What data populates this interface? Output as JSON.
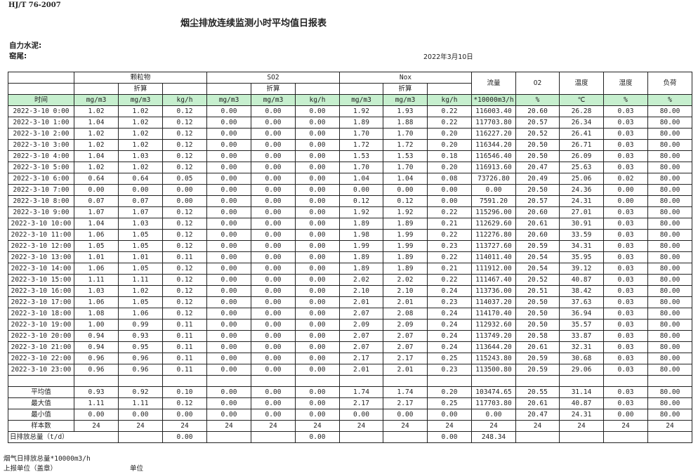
{
  "standard": "HJ/T  76-2007",
  "title": "烟尘排放连续监测小时平均值日报表",
  "company": "自力水泥:",
  "unit_name": "窑尾:",
  "date": "2022年3月10日",
  "header": {
    "groups": [
      "颗粒物",
      "SO2",
      "Nox"
    ],
    "converted": "折算",
    "flow": "流量",
    "o2": "O2",
    "temp": "温度",
    "humidity": "湿度",
    "load": "负荷",
    "units": [
      "时间",
      "mg/m3",
      "mg/m3",
      "kg/h",
      "mg/m3",
      "mg/m3",
      "kg/h",
      "mg/m3",
      "mg/m3",
      "kg/h",
      "*10000m3/h",
      "%",
      "℃",
      "%",
      "%"
    ]
  },
  "rows": [
    [
      "2022-3-10 0:00",
      "1.02",
      "1.02",
      "0.12",
      "0.00",
      "0.00",
      "0.00",
      "1.92",
      "1.93",
      "0.22",
      "116003.40",
      "20.60",
      "26.28",
      "0.03",
      "80.00"
    ],
    [
      "2022-3-10 1:00",
      "1.04",
      "1.02",
      "0.12",
      "0.00",
      "0.00",
      "0.00",
      "1.89",
      "1.88",
      "0.22",
      "117703.80",
      "20.57",
      "26.34",
      "0.03",
      "80.00"
    ],
    [
      "2022-3-10 2:00",
      "1.02",
      "1.02",
      "0.12",
      "0.00",
      "0.00",
      "0.00",
      "1.70",
      "1.70",
      "0.20",
      "116227.20",
      "20.52",
      "26.41",
      "0.03",
      "80.00"
    ],
    [
      "2022-3-10 3:00",
      "1.02",
      "1.02",
      "0.12",
      "0.00",
      "0.00",
      "0.00",
      "1.72",
      "1.72",
      "0.20",
      "116344.20",
      "20.50",
      "26.71",
      "0.03",
      "80.00"
    ],
    [
      "2022-3-10 4:00",
      "1.04",
      "1.03",
      "0.12",
      "0.00",
      "0.00",
      "0.00",
      "1.53",
      "1.53",
      "0.18",
      "116546.40",
      "20.50",
      "26.09",
      "0.03",
      "80.00"
    ],
    [
      "2022-3-10 5:00",
      "1.02",
      "1.02",
      "0.12",
      "0.00",
      "0.00",
      "0.00",
      "1.70",
      "1.70",
      "0.20",
      "116913.60",
      "20.47",
      "25.63",
      "0.03",
      "80.00"
    ],
    [
      "2022-3-10 6:00",
      "0.64",
      "0.64",
      "0.05",
      "0.00",
      "0.00",
      "0.00",
      "1.04",
      "1.04",
      "0.08",
      "73726.80",
      "20.49",
      "25.06",
      "0.02",
      "80.00"
    ],
    [
      "2022-3-10 7:00",
      "0.00",
      "0.00",
      "0.00",
      "0.00",
      "0.00",
      "0.00",
      "0.00",
      "0.00",
      "0.00",
      "0.00",
      "20.50",
      "24.36",
      "0.00",
      "80.00"
    ],
    [
      "2022-3-10 8:00",
      "0.07",
      "0.07",
      "0.00",
      "0.00",
      "0.00",
      "0.00",
      "0.12",
      "0.12",
      "0.00",
      "7591.20",
      "20.57",
      "24.31",
      "0.00",
      "80.00"
    ],
    [
      "2022-3-10 9:00",
      "1.07",
      "1.07",
      "0.12",
      "0.00",
      "0.00",
      "0.00",
      "1.92",
      "1.92",
      "0.22",
      "115296.00",
      "20.60",
      "27.01",
      "0.03",
      "80.00"
    ],
    [
      "2022-3-10 10:00",
      "1.04",
      "1.03",
      "0.12",
      "0.00",
      "0.00",
      "0.00",
      "1.89",
      "1.89",
      "0.21",
      "112629.60",
      "20.61",
      "30.91",
      "0.03",
      "80.00"
    ],
    [
      "2022-3-10 11:00",
      "1.06",
      "1.05",
      "0.12",
      "0.00",
      "0.00",
      "0.00",
      "1.98",
      "1.99",
      "0.22",
      "112276.80",
      "20.60",
      "33.59",
      "0.03",
      "80.00"
    ],
    [
      "2022-3-10 12:00",
      "1.05",
      "1.05",
      "0.12",
      "0.00",
      "0.00",
      "0.00",
      "1.99",
      "1.99",
      "0.23",
      "113727.60",
      "20.59",
      "34.31",
      "0.03",
      "80.00"
    ],
    [
      "2022-3-10 13:00",
      "1.01",
      "1.01",
      "0.11",
      "0.00",
      "0.00",
      "0.00",
      "1.89",
      "1.89",
      "0.22",
      "114011.40",
      "20.54",
      "35.95",
      "0.03",
      "80.00"
    ],
    [
      "2022-3-10 14:00",
      "1.06",
      "1.05",
      "0.12",
      "0.00",
      "0.00",
      "0.00",
      "1.89",
      "1.89",
      "0.21",
      "111912.00",
      "20.54",
      "39.12",
      "0.03",
      "80.00"
    ],
    [
      "2022-3-10 15:00",
      "1.11",
      "1.11",
      "0.12",
      "0.00",
      "0.00",
      "0.00",
      "2.02",
      "2.02",
      "0.22",
      "111467.40",
      "20.52",
      "40.87",
      "0.03",
      "80.00"
    ],
    [
      "2022-3-10 16:00",
      "1.03",
      "1.02",
      "0.12",
      "0.00",
      "0.00",
      "0.00",
      "2.10",
      "2.10",
      "0.24",
      "113736.00",
      "20.51",
      "38.42",
      "0.03",
      "80.00"
    ],
    [
      "2022-3-10 17:00",
      "1.06",
      "1.05",
      "0.12",
      "0.00",
      "0.00",
      "0.00",
      "2.01",
      "2.01",
      "0.23",
      "114037.20",
      "20.50",
      "37.63",
      "0.03",
      "80.00"
    ],
    [
      "2022-3-10 18:00",
      "1.08",
      "1.06",
      "0.12",
      "0.00",
      "0.00",
      "0.00",
      "2.07",
      "2.08",
      "0.24",
      "114170.40",
      "20.50",
      "36.94",
      "0.03",
      "80.00"
    ],
    [
      "2022-3-10 19:00",
      "1.00",
      "0.99",
      "0.11",
      "0.00",
      "0.00",
      "0.00",
      "2.09",
      "2.09",
      "0.24",
      "112932.60",
      "20.50",
      "35.57",
      "0.03",
      "80.00"
    ],
    [
      "2022-3-10 20:00",
      "0.94",
      "0.93",
      "0.11",
      "0.00",
      "0.00",
      "0.00",
      "2.07",
      "2.07",
      "0.24",
      "113749.20",
      "20.58",
      "33.87",
      "0.03",
      "80.00"
    ],
    [
      "2022-3-10 21:00",
      "0.94",
      "0.95",
      "0.11",
      "0.00",
      "0.00",
      "0.00",
      "2.07",
      "2.07",
      "0.24",
      "113644.20",
      "20.61",
      "32.31",
      "0.03",
      "80.00"
    ],
    [
      "2022-3-10 22:00",
      "0.96",
      "0.96",
      "0.11",
      "0.00",
      "0.00",
      "0.00",
      "2.17",
      "2.17",
      "0.25",
      "115243.80",
      "20.59",
      "30.68",
      "0.03",
      "80.00"
    ],
    [
      "2022-3-10 23:00",
      "0.96",
      "0.96",
      "0.11",
      "0.00",
      "0.00",
      "0.00",
      "2.01",
      "2.01",
      "0.23",
      "113500.80",
      "20.59",
      "29.06",
      "0.03",
      "80.00"
    ]
  ],
  "summary": [
    [
      "平均值",
      "0.93",
      "0.92",
      "0.10",
      "0.00",
      "0.00",
      "0.00",
      "1.74",
      "1.74",
      "0.20",
      "103474.65",
      "20.55",
      "31.14",
      "0.03",
      "80.00"
    ],
    [
      "最大值",
      "1.11",
      "1.11",
      "0.12",
      "0.00",
      "0.00",
      "0.00",
      "2.17",
      "2.17",
      "0.25",
      "117703.80",
      "20.61",
      "40.87",
      "0.03",
      "80.00"
    ],
    [
      "最小值",
      "0.00",
      "0.00",
      "0.00",
      "0.00",
      "0.00",
      "0.00",
      "0.00",
      "0.00",
      "0.00",
      "0.00",
      "20.47",
      "24.31",
      "0.00",
      "80.00"
    ],
    [
      "样本数",
      "24",
      "24",
      "24",
      "24",
      "24",
      "24",
      "24",
      "24",
      "24",
      "24",
      "24",
      "24",
      "24",
      "24"
    ]
  ],
  "daily_total": {
    "label": "日排放总量（t/d）",
    "particulate_kgh": "0.00",
    "so2_kgh": "0.00",
    "nox_kgh": "0.00",
    "flow": "248.34"
  },
  "footer": {
    "flue_gas_total": "烟气日排放总量*10000m3/h",
    "reporting_unit": "上报单位（盖章）",
    "unit": "单位"
  },
  "colors": {
    "header_fill": "#c6efce",
    "border": "#222222"
  }
}
